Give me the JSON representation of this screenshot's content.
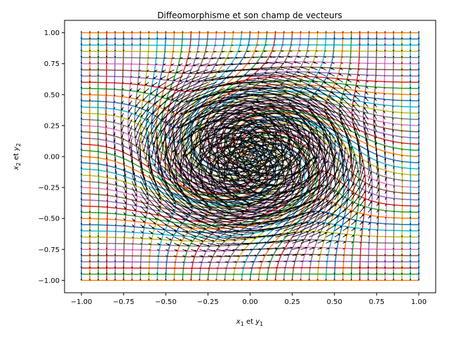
{
  "chart_data": {
    "type": "line",
    "title": "Diffeomorphisme et son champ de vecteurs",
    "xlabel": {
      "main": "x",
      "sub": "1",
      "mid": " et ",
      "main2": "y",
      "sub2": "1"
    },
    "ylabel": {
      "main": "x",
      "sub": "2",
      "mid": " et ",
      "main2": "y",
      "sub2": "2"
    },
    "xlim": [
      -1.1,
      1.1
    ],
    "ylim": [
      -1.1,
      1.1
    ],
    "xticks": [
      -1.0,
      -0.75,
      -0.5,
      -0.25,
      0.0,
      0.25,
      0.5,
      0.75,
      1.0
    ],
    "yticks": [
      -1.0,
      -0.75,
      -0.5,
      -0.25,
      0.0,
      0.25,
      0.5,
      0.75,
      1.0
    ],
    "xtick_labels": [
      "−1.00",
      "−0.75",
      "−0.50",
      "−0.25",
      "0.00",
      "0.25",
      "0.50",
      "0.75",
      "1.00"
    ],
    "ytick_labels": [
      "−1.00",
      "−0.75",
      "−0.50",
      "−0.25",
      "0.00",
      "0.25",
      "0.50",
      "0.75",
      "1.00"
    ],
    "grid": false,
    "grid_lines_per_axis": 41,
    "domain": [
      -1.0,
      1.0
    ],
    "deformation": "swirl",
    "swirl_strength": 2.6,
    "swirl_center": [
      0.0,
      0.0
    ],
    "arrow_color": "#000000",
    "series_colors": [
      "#1f77b4",
      "#ff7f0e",
      "#2ca02c",
      "#d62728",
      "#9467bd",
      "#8c564b",
      "#e377c2",
      "#7f7f7f",
      "#bcbd22",
      "#17becf"
    ]
  }
}
